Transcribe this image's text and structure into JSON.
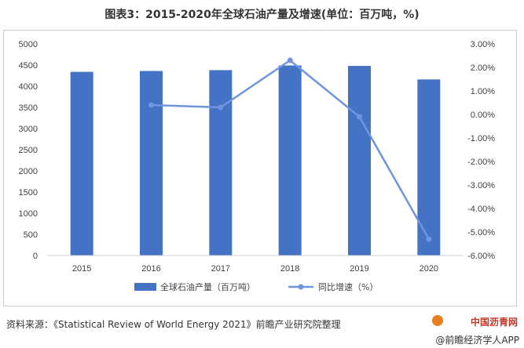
{
  "title": "图表3：2015-2020年全球石油产量及增速(单位：百万吨，%)",
  "source": "资料来源：《Statistical Review of World Energy 2021》前瞻产业研究院整理",
  "watermark": {
    "site": "中国沥青网",
    "brand": "@前瞻经济学人APP"
  },
  "colors": {
    "bar": "#4472C4",
    "line": "#6F95E0"
  },
  "chart_data": {
    "type": "bar+line",
    "categories": [
      "2015",
      "2016",
      "2017",
      "2018",
      "2019",
      "2020"
    ],
    "series": [
      {
        "name": "全球石油产量（百万吨）",
        "type": "bar",
        "axis": "left",
        "values": [
          4340,
          4360,
          4380,
          4490,
          4480,
          4160
        ]
      },
      {
        "name": "同比增速（%）",
        "type": "line",
        "axis": "right",
        "values": [
          null,
          0.4,
          0.3,
          2.3,
          -0.1,
          -5.3
        ]
      }
    ],
    "y_left": {
      "min": 0,
      "max": 5000,
      "step": 500,
      "ticks": [
        "0",
        "500",
        "1000",
        "1500",
        "2000",
        "2500",
        "3000",
        "3500",
        "4000",
        "4500",
        "5000"
      ]
    },
    "y_right": {
      "min": -6,
      "max": 3,
      "step": 1,
      "ticks": [
        "-6.00%",
        "-5.00%",
        "-4.00%",
        "-3.00%",
        "-2.00%",
        "-1.00%",
        "0.00%",
        "1.00%",
        "2.00%",
        "3.00%"
      ]
    },
    "legend": {
      "position": "bottom",
      "items": [
        {
          "label": "全球石油产量（百万吨）",
          "kind": "bar"
        },
        {
          "label": "同比增速（%）",
          "kind": "line"
        }
      ]
    }
  }
}
